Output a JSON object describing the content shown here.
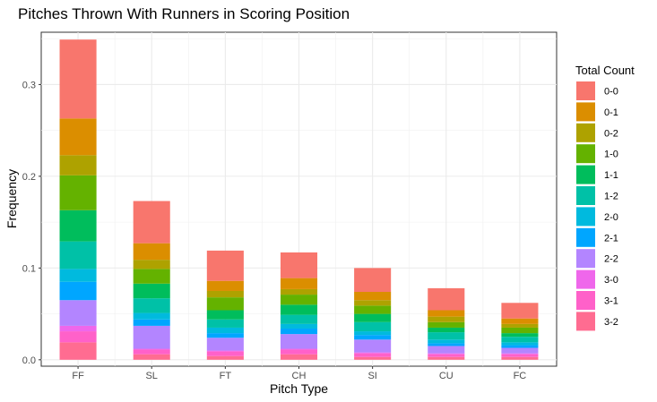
{
  "chart_data": {
    "type": "bar",
    "stacked": true,
    "title": "Pitches Thrown With Runners in Scoring Position",
    "xlabel": "Pitch Type",
    "ylabel": "Frequency",
    "ylim": [
      -0.007,
      0.357
    ],
    "yticks": [
      "0.0",
      "0.1",
      "0.2",
      "0.3"
    ],
    "grid": true,
    "legend_position": "right",
    "legend_title": "Total Count",
    "categories": [
      "FF",
      "SL",
      "FT",
      "CH",
      "SI",
      "CU",
      "FC"
    ],
    "series": [
      {
        "name": "0-0",
        "color": "#F8766D",
        "values": [
          0.086,
          0.046,
          0.033,
          0.028,
          0.026,
          0.024,
          0.017
        ]
      },
      {
        "name": "0-1",
        "color": "#DB8E00",
        "values": [
          0.04,
          0.018,
          0.011,
          0.012,
          0.009,
          0.007,
          0.006
        ]
      },
      {
        "name": "0-2",
        "color": "#AEA200",
        "values": [
          0.022,
          0.01,
          0.007,
          0.006,
          0.006,
          0.006,
          0.004
        ]
      },
      {
        "name": "1-0",
        "color": "#64B200",
        "values": [
          0.038,
          0.016,
          0.014,
          0.011,
          0.009,
          0.006,
          0.006
        ]
      },
      {
        "name": "1-1",
        "color": "#00BD5C",
        "values": [
          0.034,
          0.016,
          0.01,
          0.011,
          0.009,
          0.005,
          0.004
        ]
      },
      {
        "name": "1-2",
        "color": "#00C1A7",
        "values": [
          0.03,
          0.016,
          0.009,
          0.01,
          0.01,
          0.008,
          0.006
        ]
      },
      {
        "name": "2-0",
        "color": "#00BADE",
        "values": [
          0.014,
          0.007,
          0.006,
          0.005,
          0.004,
          0.004,
          0.003
        ]
      },
      {
        "name": "2-1",
        "color": "#00A6FF",
        "values": [
          0.02,
          0.007,
          0.005,
          0.006,
          0.005,
          0.003,
          0.003
        ]
      },
      {
        "name": "2-2",
        "color": "#B385FF",
        "values": [
          0.028,
          0.025,
          0.014,
          0.016,
          0.014,
          0.008,
          0.006
        ]
      },
      {
        "name": "3-0",
        "color": "#EF67EB",
        "values": [
          0.006,
          0.001,
          0.001,
          0.001,
          0.001,
          0.001,
          0.001
        ]
      },
      {
        "name": "3-1",
        "color": "#FF61C9",
        "values": [
          0.012,
          0.005,
          0.005,
          0.005,
          0.004,
          0.003,
          0.003
        ]
      },
      {
        "name": "3-2",
        "color": "#FF6C91",
        "values": [
          0.019,
          0.006,
          0.004,
          0.006,
          0.003,
          0.003,
          0.003
        ]
      }
    ]
  }
}
